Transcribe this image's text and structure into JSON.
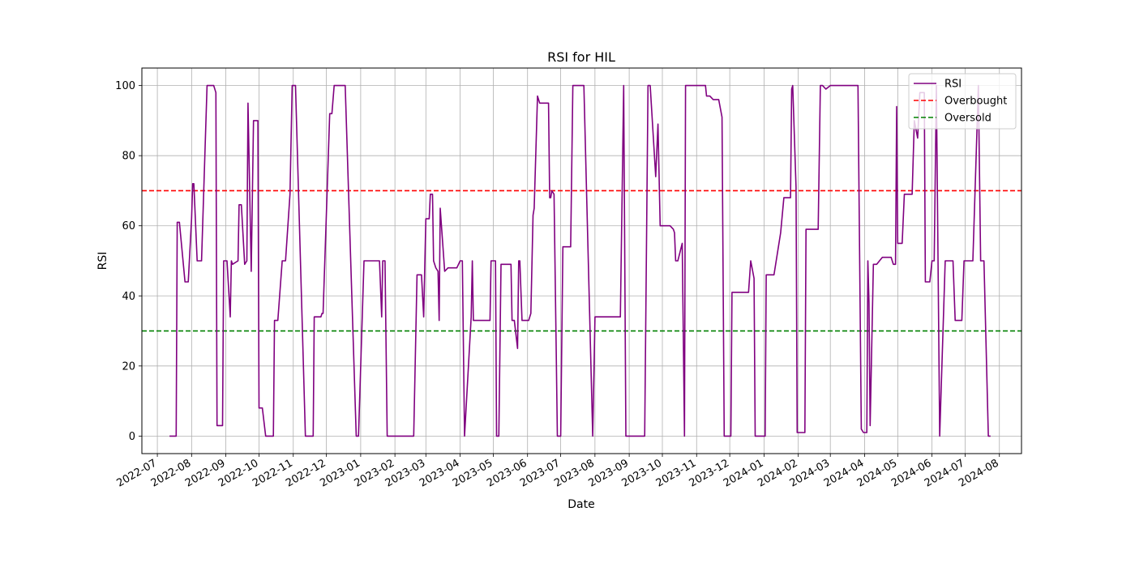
{
  "chart_data": {
    "type": "line",
    "title": "RSI for HIL",
    "xlabel": "Date",
    "ylabel": "RSI",
    "ylim": [
      -5,
      105
    ],
    "xlim": [
      "2022-06-17",
      "2024-08-21"
    ],
    "y_ticks": [
      0,
      20,
      40,
      60,
      80,
      100
    ],
    "x_ticks": [
      "2022-07",
      "2022-08",
      "2022-09",
      "2022-10",
      "2022-11",
      "2022-12",
      "2023-01",
      "2023-02",
      "2023-03",
      "2023-04",
      "2023-05",
      "2023-06",
      "2023-07",
      "2023-08",
      "2023-09",
      "2023-10",
      "2023-11",
      "2023-12",
      "2024-01",
      "2024-02",
      "2024-03",
      "2024-04",
      "2024-05",
      "2024-06",
      "2024-07",
      "2024-08"
    ],
    "grid": true,
    "legend_position": "top-right",
    "series": [
      {
        "name": "RSI",
        "color": "#800080",
        "style": "solid",
        "points": [
          [
            "2022-07-12",
            0
          ],
          [
            "2022-07-18",
            0
          ],
          [
            "2022-07-19",
            61
          ],
          [
            "2022-07-21",
            61
          ],
          [
            "2022-07-26",
            44
          ],
          [
            "2022-07-29",
            44
          ],
          [
            "2022-08-01",
            62
          ],
          [
            "2022-08-02",
            72
          ],
          [
            "2022-08-03",
            72
          ],
          [
            "2022-08-06",
            50
          ],
          [
            "2022-08-10",
            50
          ],
          [
            "2022-08-15",
            100
          ],
          [
            "2022-08-21",
            100
          ],
          [
            "2022-08-23",
            98
          ],
          [
            "2022-08-24",
            3
          ],
          [
            "2022-08-29",
            3
          ],
          [
            "2022-08-30",
            50
          ],
          [
            "2022-09-02",
            50
          ],
          [
            "2022-09-05",
            34
          ],
          [
            "2022-09-06",
            50
          ],
          [
            "2022-09-07",
            49
          ],
          [
            "2022-09-12",
            50
          ],
          [
            "2022-09-13",
            66
          ],
          [
            "2022-09-15",
            66
          ],
          [
            "2022-09-18",
            49
          ],
          [
            "2022-09-20",
            50
          ],
          [
            "2022-09-21",
            95
          ],
          [
            "2022-09-24",
            47
          ],
          [
            "2022-09-26",
            90
          ],
          [
            "2022-09-30",
            90
          ],
          [
            "2022-10-01",
            8
          ],
          [
            "2022-10-04",
            8
          ],
          [
            "2022-10-07",
            0
          ],
          [
            "2022-10-14",
            0
          ],
          [
            "2022-10-15",
            33
          ],
          [
            "2022-10-18",
            33
          ],
          [
            "2022-10-22",
            50
          ],
          [
            "2022-10-25",
            50
          ],
          [
            "2022-10-29",
            69
          ],
          [
            "2022-10-31",
            100
          ],
          [
            "2022-11-03",
            100
          ],
          [
            "2022-11-12",
            0
          ],
          [
            "2022-11-19",
            0
          ],
          [
            "2022-11-20",
            34
          ],
          [
            "2022-11-26",
            34
          ],
          [
            "2022-11-27",
            35
          ],
          [
            "2022-11-28",
            35
          ],
          [
            "2022-12-04",
            92
          ],
          [
            "2022-12-06",
            92
          ],
          [
            "2022-12-08",
            100
          ],
          [
            "2022-12-18",
            100
          ],
          [
            "2022-12-28",
            0
          ],
          [
            "2022-12-30",
            0
          ],
          [
            "2023-01-04",
            50
          ],
          [
            "2023-01-18",
            50
          ],
          [
            "2023-01-20",
            34
          ],
          [
            "2023-01-21",
            50
          ],
          [
            "2023-01-23",
            50
          ],
          [
            "2023-01-25",
            0
          ],
          [
            "2023-02-18",
            0
          ],
          [
            "2023-02-21",
            46
          ],
          [
            "2023-02-25",
            46
          ],
          [
            "2023-02-27",
            34
          ],
          [
            "2023-02-28",
            48
          ],
          [
            "2023-03-01",
            62
          ],
          [
            "2023-03-04",
            62
          ],
          [
            "2023-03-05",
            69
          ],
          [
            "2023-03-07",
            69
          ],
          [
            "2023-03-08",
            50
          ],
          [
            "2023-03-10",
            48
          ],
          [
            "2023-03-12",
            47
          ],
          [
            "2023-03-13",
            33
          ],
          [
            "2023-03-14",
            65
          ],
          [
            "2023-03-18",
            47
          ],
          [
            "2023-03-21",
            48
          ],
          [
            "2023-03-29",
            48
          ],
          [
            "2023-04-01",
            50
          ],
          [
            "2023-04-03",
            50
          ],
          [
            "2023-04-05",
            0
          ],
          [
            "2023-04-11",
            34
          ],
          [
            "2023-04-12",
            50
          ],
          [
            "2023-04-13",
            33
          ],
          [
            "2023-04-28",
            33
          ],
          [
            "2023-04-29",
            50
          ],
          [
            "2023-05-03",
            50
          ],
          [
            "2023-05-04",
            0
          ],
          [
            "2023-05-06",
            0
          ],
          [
            "2023-05-08",
            49
          ],
          [
            "2023-05-17",
            49
          ],
          [
            "2023-05-18",
            33
          ],
          [
            "2023-05-20",
            33
          ],
          [
            "2023-05-23",
            25
          ],
          [
            "2023-05-24",
            50
          ],
          [
            "2023-05-25",
            50
          ],
          [
            "2023-05-27",
            33
          ],
          [
            "2023-06-01",
            33
          ],
          [
            "2023-06-02",
            33
          ],
          [
            "2023-06-04",
            35
          ],
          [
            "2023-06-06",
            63
          ],
          [
            "2023-06-07",
            65
          ],
          [
            "2023-06-10",
            97
          ],
          [
            "2023-06-12",
            95
          ],
          [
            "2023-06-20",
            95
          ],
          [
            "2023-06-21",
            68
          ],
          [
            "2023-06-22",
            68
          ],
          [
            "2023-06-23",
            70
          ],
          [
            "2023-06-25",
            69
          ],
          [
            "2023-06-27",
            24
          ],
          [
            "2023-06-28",
            0
          ],
          [
            "2023-07-01",
            0
          ],
          [
            "2023-07-03",
            54
          ],
          [
            "2023-07-10",
            54
          ],
          [
            "2023-07-12",
            100
          ],
          [
            "2023-07-22",
            100
          ],
          [
            "2023-07-30",
            0
          ],
          [
            "2023-08-01",
            34
          ],
          [
            "2023-08-24",
            34
          ],
          [
            "2023-08-27",
            100
          ],
          [
            "2023-08-29",
            0
          ],
          [
            "2023-09-15",
            0
          ],
          [
            "2023-09-18",
            100
          ],
          [
            "2023-09-20",
            100
          ],
          [
            "2023-09-25",
            74
          ],
          [
            "2023-09-27",
            89
          ],
          [
            "2023-09-29",
            60
          ],
          [
            "2023-10-08",
            60
          ],
          [
            "2023-10-11",
            59
          ],
          [
            "2023-10-12",
            58
          ],
          [
            "2023-10-13",
            50
          ],
          [
            "2023-10-15",
            50
          ],
          [
            "2023-10-19",
            55
          ],
          [
            "2023-10-21",
            0
          ],
          [
            "2023-10-22",
            100
          ],
          [
            "2023-11-09",
            100
          ],
          [
            "2023-11-10",
            97
          ],
          [
            "2023-11-13",
            97
          ],
          [
            "2023-11-16",
            96
          ],
          [
            "2023-11-21",
            96
          ],
          [
            "2023-11-24",
            91
          ],
          [
            "2023-11-26",
            0
          ],
          [
            "2023-12-02",
            0
          ],
          [
            "2023-12-03",
            41
          ],
          [
            "2023-12-12",
            41
          ],
          [
            "2023-12-18",
            41
          ],
          [
            "2023-12-20",
            50
          ],
          [
            "2023-12-23",
            45
          ],
          [
            "2023-12-24",
            0
          ],
          [
            "2024-01-02",
            0
          ],
          [
            "2024-01-03",
            46
          ],
          [
            "2024-01-10",
            46
          ],
          [
            "2024-01-16",
            58
          ],
          [
            "2024-01-19",
            68
          ],
          [
            "2024-01-25",
            68
          ],
          [
            "2024-01-26",
            99
          ],
          [
            "2024-01-27",
            100
          ],
          [
            "2024-01-30",
            71
          ],
          [
            "2024-01-31",
            1
          ],
          [
            "2024-02-07",
            1
          ],
          [
            "2024-02-08",
            59
          ],
          [
            "2024-02-19",
            59
          ],
          [
            "2024-02-21",
            100
          ],
          [
            "2024-02-23",
            100
          ],
          [
            "2024-02-26",
            99
          ],
          [
            "2024-03-01",
            100
          ],
          [
            "2024-03-19",
            100
          ],
          [
            "2024-03-23",
            100
          ],
          [
            "2024-03-26",
            100
          ],
          [
            "2024-03-29",
            2
          ],
          [
            "2024-03-31",
            1
          ],
          [
            "2024-04-03",
            1
          ],
          [
            "2024-04-04",
            50
          ],
          [
            "2024-04-05",
            38
          ],
          [
            "2024-04-06",
            3
          ],
          [
            "2024-04-09",
            49
          ],
          [
            "2024-04-12",
            49
          ],
          [
            "2024-04-17",
            51
          ],
          [
            "2024-04-25",
            51
          ],
          [
            "2024-04-27",
            49
          ],
          [
            "2024-04-29",
            49
          ],
          [
            "2024-04-30",
            94
          ],
          [
            "2024-05-01",
            55
          ],
          [
            "2024-05-05",
            55
          ],
          [
            "2024-05-07",
            69
          ],
          [
            "2024-05-14",
            69
          ],
          [
            "2024-05-16",
            90
          ],
          [
            "2024-05-19",
            85
          ],
          [
            "2024-05-21",
            98
          ],
          [
            "2024-05-23",
            98
          ],
          [
            "2024-05-25",
            98
          ],
          [
            "2024-05-26",
            44
          ],
          [
            "2024-05-30",
            44
          ],
          [
            "2024-06-01",
            50
          ],
          [
            "2024-06-03",
            50
          ],
          [
            "2024-06-05",
            100
          ],
          [
            "2024-06-08",
            0
          ],
          [
            "2024-06-13",
            50
          ],
          [
            "2024-06-20",
            50
          ],
          [
            "2024-06-22",
            33
          ],
          [
            "2024-06-28",
            33
          ],
          [
            "2024-06-30",
            50
          ],
          [
            "2024-07-02",
            50
          ],
          [
            "2024-07-08",
            50
          ],
          [
            "2024-07-13",
            100
          ],
          [
            "2024-07-15",
            50
          ],
          [
            "2024-07-18",
            50
          ],
          [
            "2024-07-22",
            0
          ],
          [
            "2024-07-24",
            0
          ]
        ]
      },
      {
        "name": "Overbought",
        "color": "#ff0000",
        "style": "dashed",
        "value": 70
      },
      {
        "name": "Oversold",
        "color": "#008000",
        "style": "dashed",
        "value": 30
      }
    ]
  }
}
